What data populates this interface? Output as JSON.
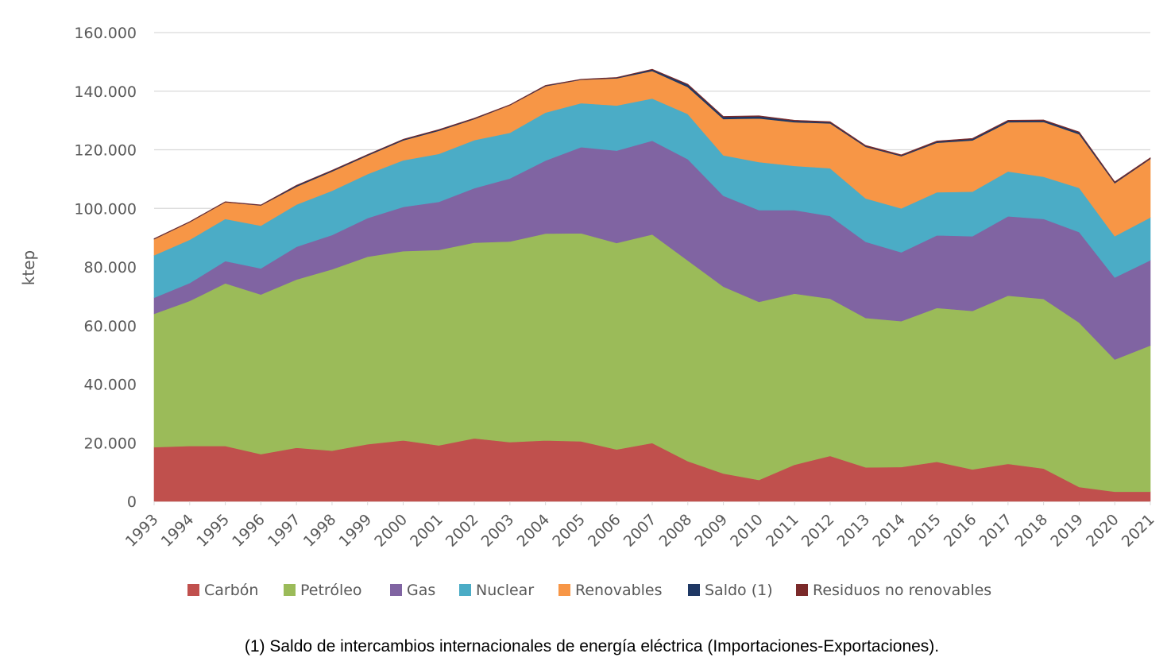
{
  "chart_data": {
    "type": "area",
    "stacked": true,
    "ylabel": "ktep",
    "ylim": [
      0,
      160000
    ],
    "yticks": [
      0,
      20000,
      40000,
      60000,
      80000,
      100000,
      120000,
      140000,
      160000
    ],
    "ytick_labels": [
      "0",
      "20.000",
      "40.000",
      "60.000",
      "80.000",
      "100.000",
      "120.000",
      "140.000",
      "160.000"
    ],
    "grid": "horizontal",
    "legend_position": "bottom",
    "x": [
      "1993",
      "1994",
      "1995",
      "1996",
      "1997",
      "1998",
      "1999",
      "2000",
      "2001",
      "2002",
      "2003",
      "2004",
      "2005",
      "2006",
      "2007",
      "2008",
      "2009",
      "2010",
      "2011",
      "2012",
      "2013",
      "2014",
      "2015",
      "2016",
      "2017",
      "2018",
      "2019",
      "2020",
      "2021"
    ],
    "series": [
      {
        "name": "Carbón",
        "color": "#c0504d",
        "values": [
          18500,
          18900,
          18900,
          16100,
          18300,
          17300,
          19500,
          20800,
          19100,
          21500,
          20200,
          20800,
          20500,
          17700,
          19900,
          13700,
          9500,
          7300,
          12500,
          15500,
          11600,
          11700,
          13500,
          10900,
          12800,
          11200,
          4900,
          3300,
          3300
        ]
      },
      {
        "name": "Petróleo",
        "color": "#9bbb59",
        "values": [
          45500,
          49500,
          55500,
          54500,
          57400,
          61900,
          64000,
          64600,
          66700,
          66800,
          68500,
          70600,
          71000,
          70500,
          71200,
          68500,
          63800,
          60800,
          58400,
          53700,
          51000,
          49800,
          52500,
          54100,
          57400,
          57900,
          56100,
          45100,
          49900
        ]
      },
      {
        "name": "Gas",
        "color": "#8064a2",
        "values": [
          5500,
          6100,
          7600,
          8900,
          11200,
          11700,
          13200,
          15100,
          16400,
          18600,
          21500,
          24900,
          29400,
          31500,
          32000,
          34600,
          31000,
          31300,
          28500,
          28200,
          26000,
          23500,
          24800,
          25500,
          27100,
          27300,
          30900,
          28000,
          29100
        ]
      },
      {
        "name": "Nuclear",
        "color": "#4bacc6",
        "values": [
          14500,
          14800,
          14400,
          14600,
          14400,
          15100,
          15000,
          15900,
          16400,
          16400,
          15600,
          16400,
          15000,
          15400,
          14400,
          15400,
          13800,
          16400,
          15100,
          16300,
          14800,
          15000,
          14700,
          15200,
          15300,
          14400,
          15100,
          14100,
          14600
        ]
      },
      {
        "name": "Renovables",
        "color": "#f79646",
        "values": [
          5500,
          6000,
          5700,
          6900,
          6100,
          6600,
          6300,
          6800,
          7900,
          7200,
          9400,
          9000,
          8000,
          9300,
          9400,
          9200,
          12400,
          14900,
          14900,
          15300,
          17600,
          17800,
          16900,
          17500,
          16800,
          18700,
          18300,
          18100,
          20000
        ]
      },
      {
        "name": "Saldo (1)",
        "color": "#1f3864",
        "values": [
          100,
          100,
          100,
          100,
          400,
          300,
          300,
          300,
          300,
          200,
          100,
          200,
          100,
          200,
          500,
          800,
          700,
          700,
          500,
          400,
          300,
          300,
          400,
          500,
          500,
          500,
          600,
          300,
          200
        ]
      },
      {
        "name": "Residuos no renovables",
        "color": "#7b2a2a",
        "values": [
          100,
          100,
          100,
          100,
          100,
          100,
          100,
          100,
          100,
          100,
          100,
          100,
          100,
          100,
          100,
          200,
          200,
          200,
          200,
          200,
          200,
          200,
          200,
          200,
          200,
          200,
          200,
          200,
          200
        ]
      }
    ]
  },
  "footnote": "(1) Saldo de intercambios internacionales de energía eléctrica (Importaciones-Exportaciones)."
}
